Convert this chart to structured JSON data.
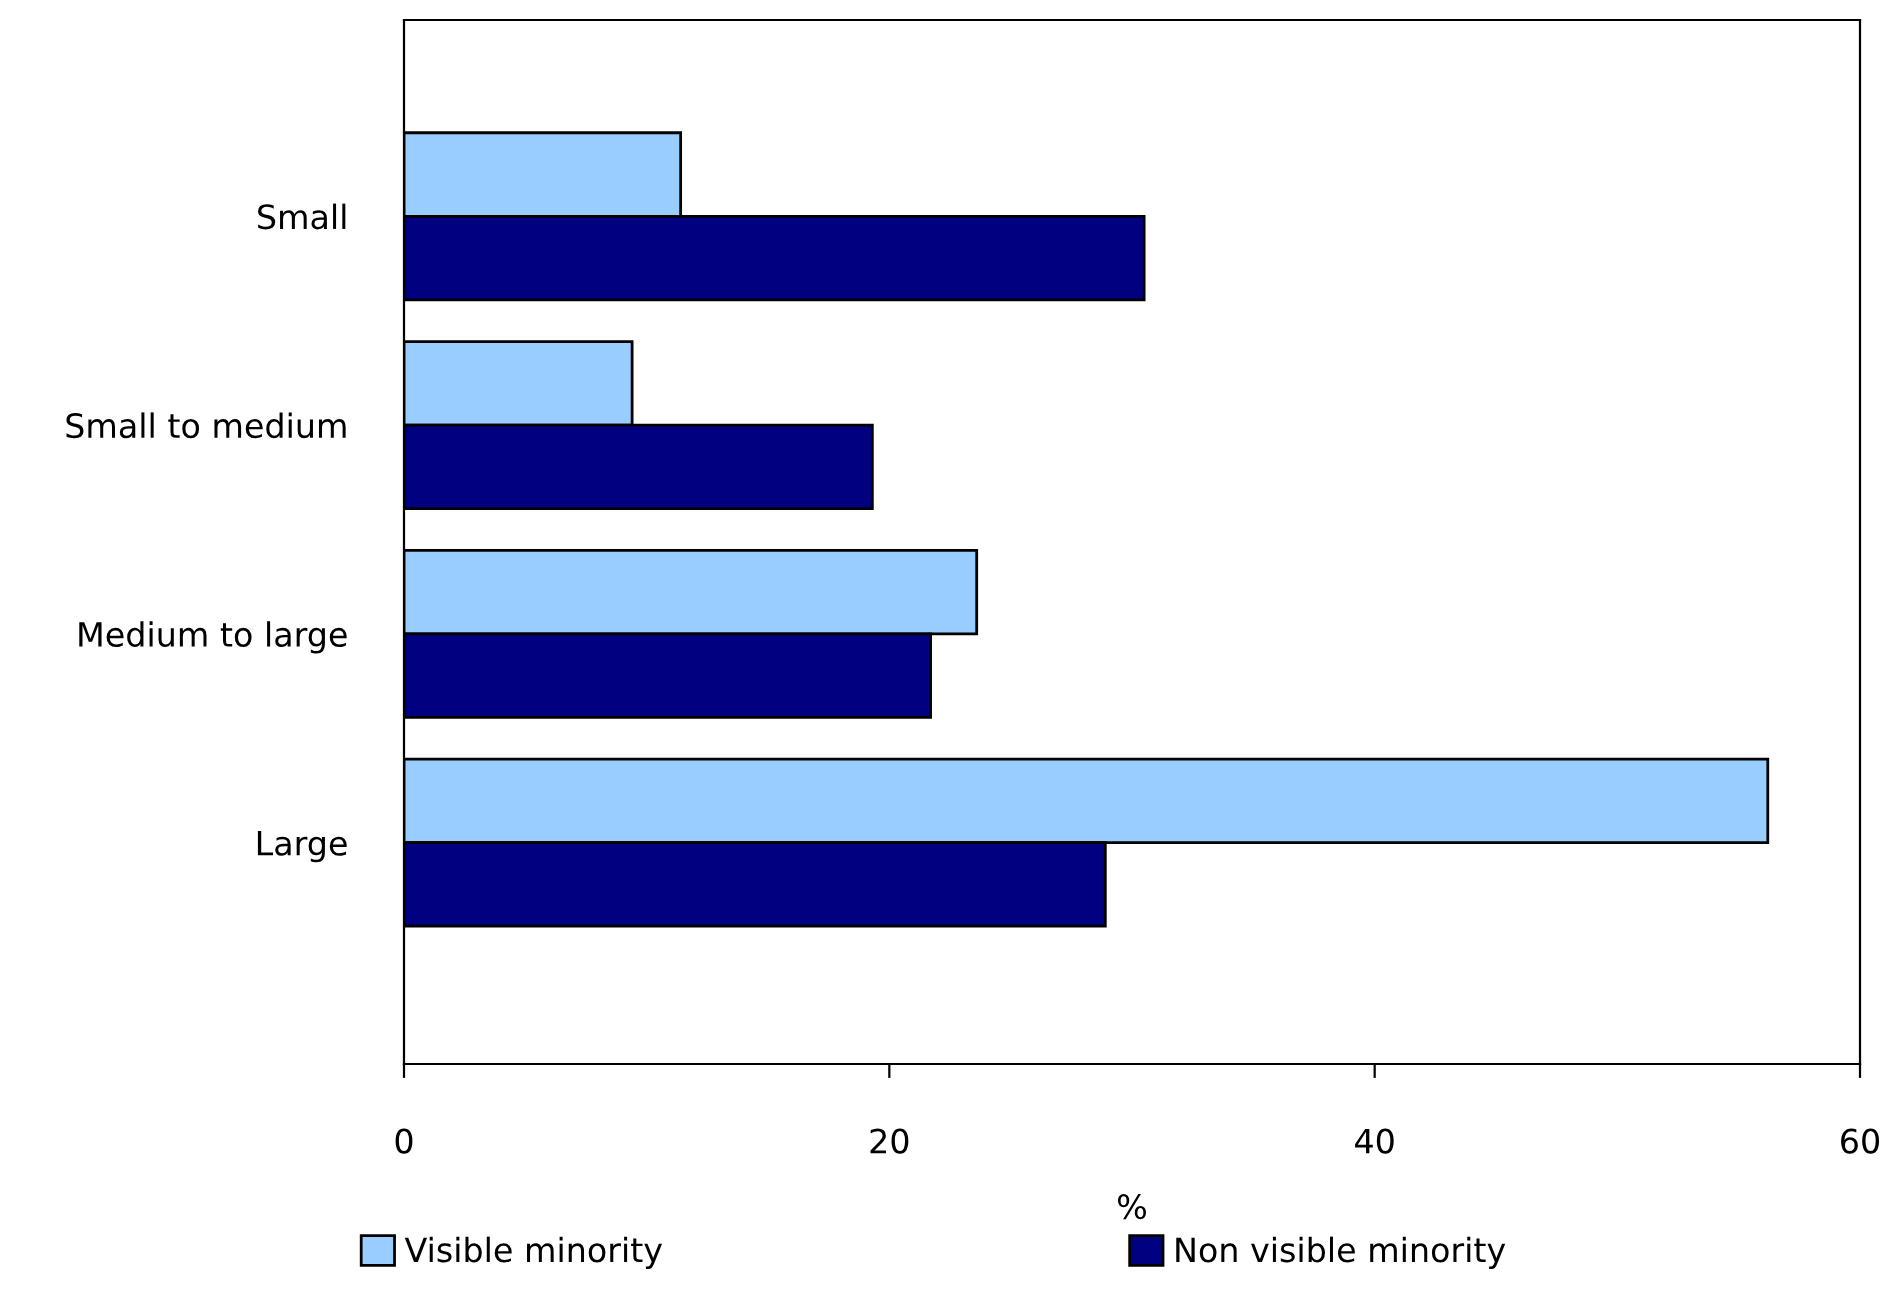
{
  "chart_data": {
    "type": "bar",
    "orientation": "horizontal",
    "xlabel": "%",
    "categories": [
      "Small",
      "Small to medium",
      "Medium to large",
      "Large"
    ],
    "series": [
      {
        "name": "Visible minority",
        "color": "#99ccff",
        "values": [
          11.4,
          9.4,
          23.6,
          56.2
        ]
      },
      {
        "name": "Non visible minority",
        "color": "#000080",
        "values": [
          30.5,
          19.3,
          21.7,
          28.9
        ]
      }
    ],
    "xlim": [
      0,
      60
    ],
    "xticks": [
      0,
      20,
      40,
      60
    ],
    "grid": false,
    "legend": "bottom"
  }
}
